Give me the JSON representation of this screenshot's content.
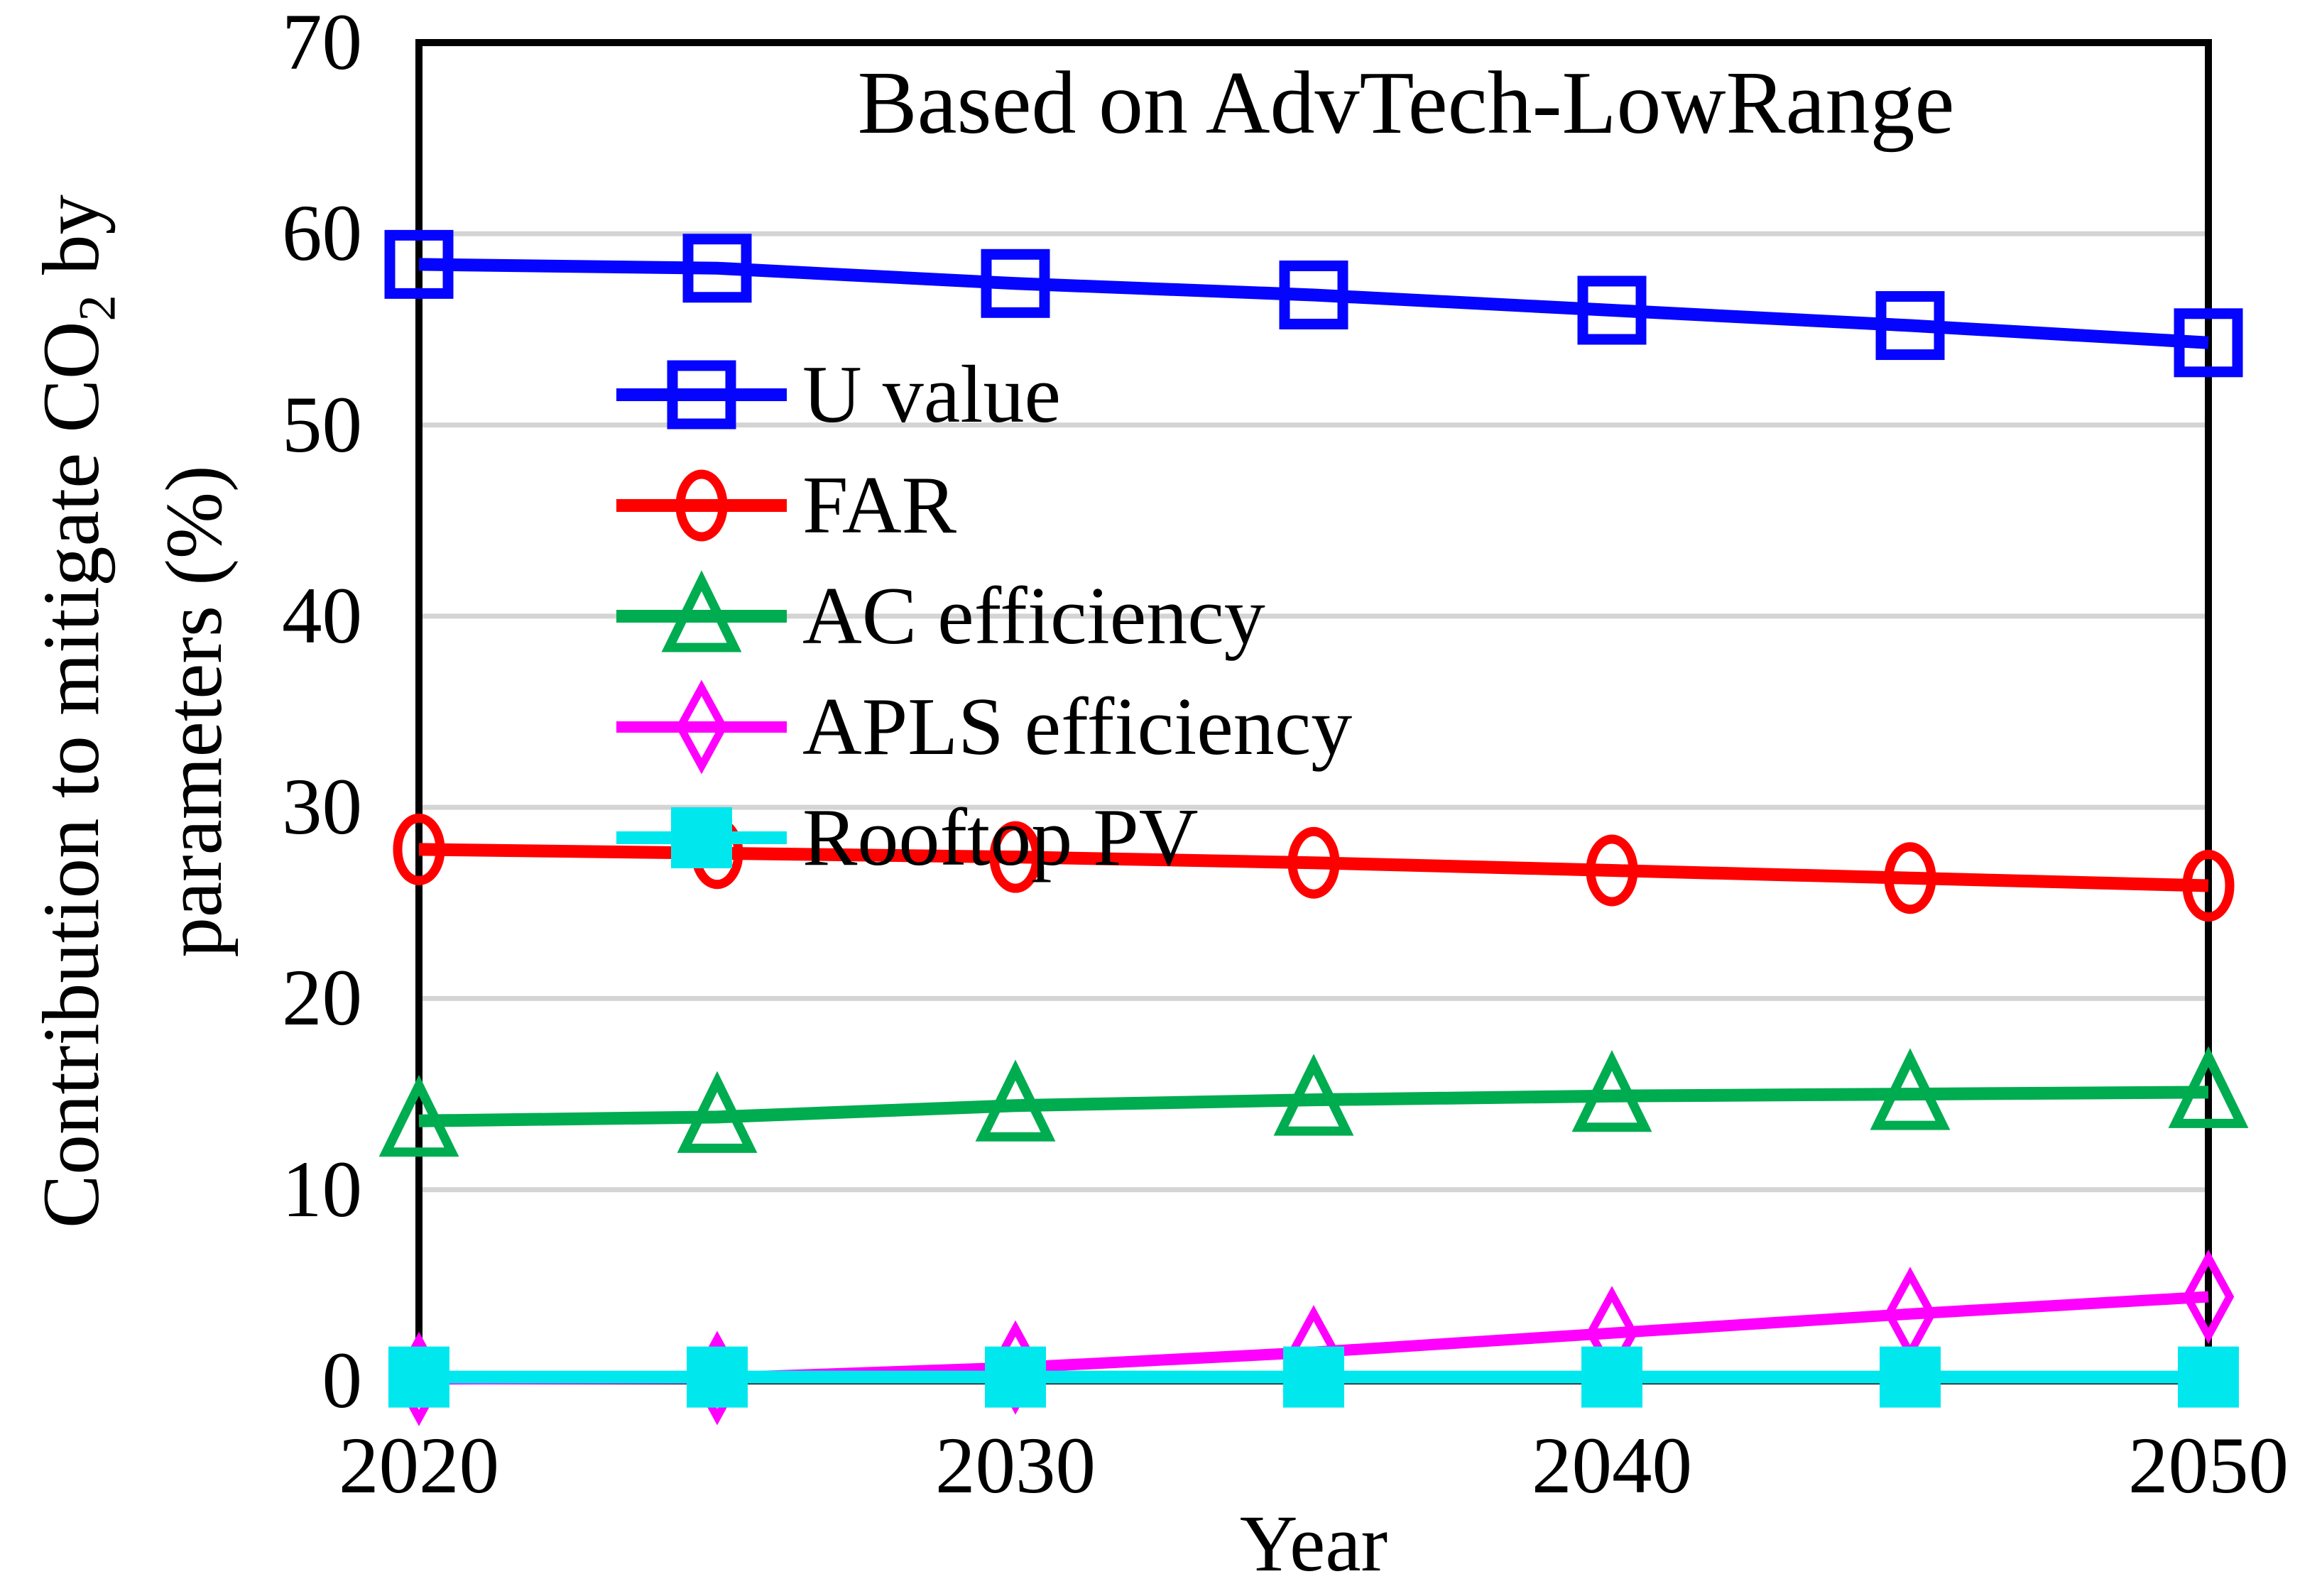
{
  "figure": {
    "ylabel_line1_pre": "Contribution to mitigate CO",
    "ylabel_subscript": "2",
    "ylabel_line1_post": " by",
    "ylabel_line2": "parameters (%)"
  },
  "chart_data": {
    "type": "line",
    "title": "Based on AdvTech-LowRange",
    "xlabel": "Year",
    "ylabel": "Contribution to mitigate CO2 by parameters (%)",
    "x": [
      2020,
      2025,
      2030,
      2035,
      2040,
      2045,
      2050
    ],
    "xlim": [
      2020,
      2050
    ],
    "ylim": [
      0,
      70
    ],
    "xtick_values": [
      2020,
      2030,
      2040,
      2050
    ],
    "xtick_labels": [
      "2020",
      "2030",
      "2040",
      "2050"
    ],
    "ytick_values": [
      0,
      10,
      20,
      30,
      40,
      50,
      60,
      70
    ],
    "ytick_labels": [
      "0",
      "10",
      "20",
      "30",
      "40",
      "50",
      "60",
      "70"
    ],
    "grid": "horizontal",
    "legend_position": "inside-upper-left",
    "series": [
      {
        "name": "U value",
        "color": "#0505ff",
        "marker": "open-square",
        "values": [
          58.4,
          58.2,
          57.4,
          56.8,
          56.0,
          55.2,
          54.3
        ]
      },
      {
        "name": "FAR",
        "color": "#ff0000",
        "marker": "open-circle",
        "values": [
          27.8,
          27.6,
          27.4,
          27.1,
          26.7,
          26.3,
          25.9
        ]
      },
      {
        "name": "AC efficiency",
        "color": "#00ac50",
        "marker": "open-triangle",
        "values": [
          13.6,
          13.8,
          14.4,
          14.7,
          14.9,
          15.0,
          15.1
        ]
      },
      {
        "name": "APLS efficiency",
        "color": "#ff00ff",
        "marker": "open-diamond",
        "values": [
          0.1,
          0.15,
          0.7,
          1.5,
          2.5,
          3.5,
          4.4
        ]
      },
      {
        "name": "Rooftop PV",
        "color": "#00e8ee",
        "marker": "filled-square",
        "values": [
          0.2,
          0.2,
          0.2,
          0.2,
          0.2,
          0.2,
          0.2
        ]
      }
    ]
  },
  "colors": {
    "background": "#ffffff",
    "frame": "#000000",
    "grid": "#d4d4d4",
    "text": "#000000"
  }
}
